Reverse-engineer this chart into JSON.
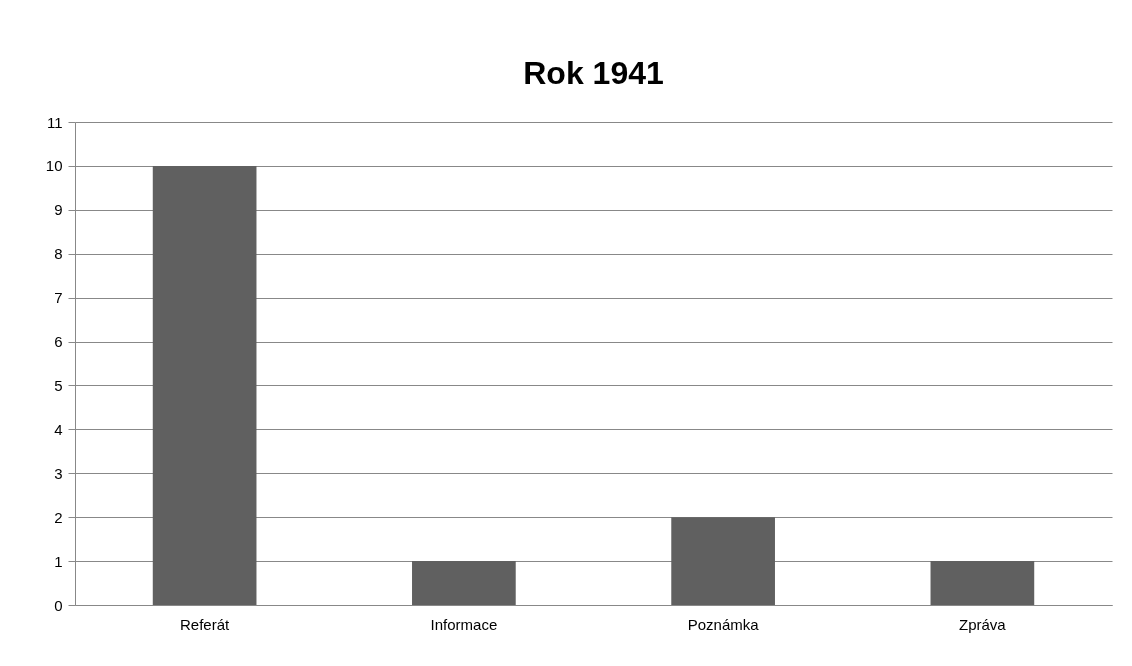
{
  "chart_data": {
    "type": "bar",
    "title": "Rok 1941",
    "categories": [
      "Referát",
      "Informace",
      "Poznámka",
      "Zpráva"
    ],
    "values": [
      10,
      1,
      2,
      1
    ],
    "color": "#606060",
    "ylim": [
      0,
      11
    ],
    "yticks": [
      0,
      1,
      2,
      3,
      4,
      5,
      6,
      7,
      8,
      9,
      10,
      11
    ],
    "grid": "y"
  }
}
